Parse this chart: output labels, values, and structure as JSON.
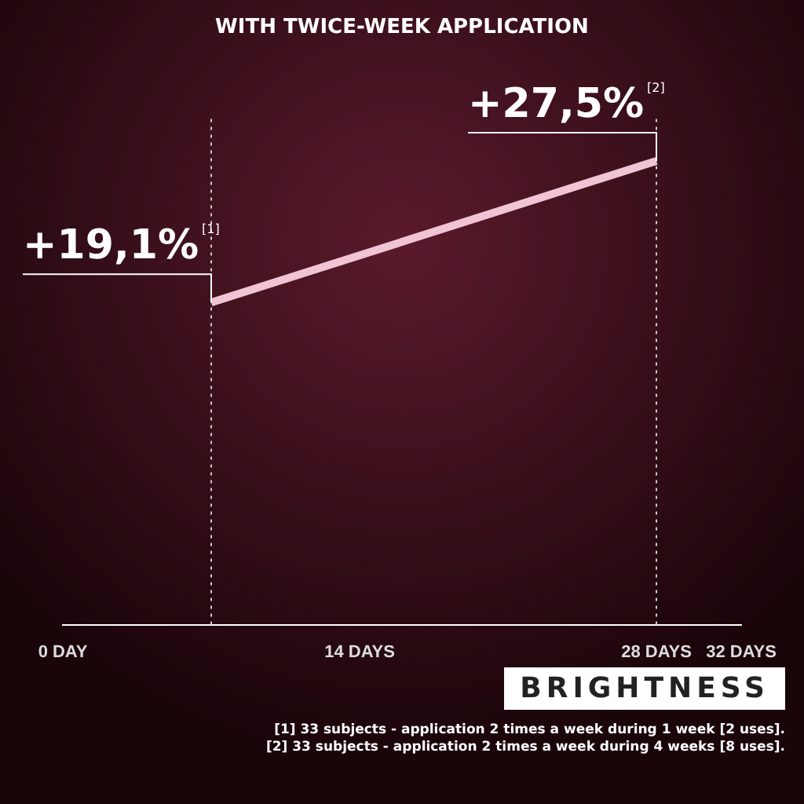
{
  "chart_data": {
    "type": "line",
    "title": "WITH TWICE-WEEK APPLICATION",
    "x": [
      7,
      28
    ],
    "values": [
      19.1,
      27.5
    ],
    "color": "#f0c4d4",
    "value_labels": [
      "+19,1%$^{[1]}$",
      "+27,5%$^{[2]}$"
    ],
    "xlim": [
      0,
      32
    ],
    "xticks": [
      {
        "value": 0,
        "label": "0 DAY"
      },
      {
        "value": 14,
        "label": "14 DAYS"
      },
      {
        "value": 28,
        "label": "28 DAYS"
      },
      {
        "value": 32,
        "label": "32 DAYS"
      }
    ],
    "ylim": [
      0,
      30
    ],
    "tick_labels": "x",
    "grid": false,
    "legend": false,
    "marker": "none",
    "line_style": "solid",
    "ref_lines": [
      {
        "axis": "x",
        "value": 7,
        "line_style": "dotted",
        "color": "#cccccc"
      },
      {
        "axis": "x",
        "value": 28,
        "line_style": "dotted",
        "color": "#cccccc"
      }
    ],
    "annotations": [
      "BRIGHTNESS",
      "[1] 33 subjects - application 2 times a week during 1 week [2 uses].",
      "[2] 33 subjects - application 2 times a week during 4 weeks [8 uses]."
    ]
  }
}
